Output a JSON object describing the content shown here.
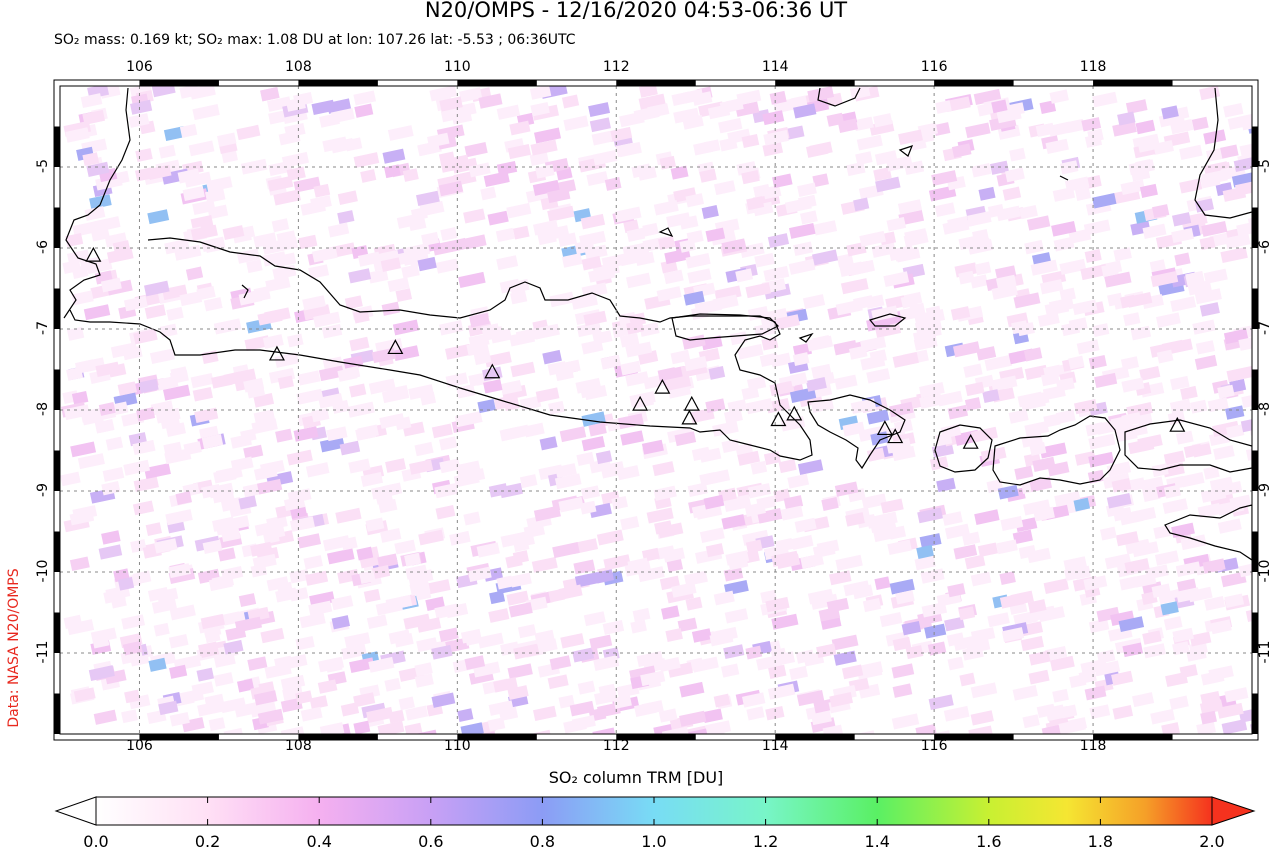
{
  "header": {
    "title": "N20/OMPS - 12/16/2020 04:53-06:36 UT",
    "subtitle": "SO₂ mass: 0.169 kt; SO₂ max: 1.08 DU at lon: 107.26 lat: -5.53 ; 06:36UTC"
  },
  "credit": "Data: NASA N20/OMPS",
  "map": {
    "lon_range": [
      105.0,
      120.0
    ],
    "lat_range": [
      -12.0,
      -4.0
    ],
    "x_ticks": [
      "106",
      "108",
      "110",
      "112",
      "114",
      "116",
      "118"
    ],
    "y_ticks": [
      "-5",
      "-6",
      "-7",
      "-8",
      "-9",
      "-10",
      "-11"
    ],
    "grid": true,
    "volcanoes": [
      {
        "lon": 105.42,
        "lat": -6.1
      },
      {
        "lon": 107.73,
        "lat": -7.32
      },
      {
        "lon": 109.22,
        "lat": -7.24
      },
      {
        "lon": 110.44,
        "lat": -7.54
      },
      {
        "lon": 112.3,
        "lat": -7.94
      },
      {
        "lon": 112.58,
        "lat": -7.73
      },
      {
        "lon": 112.95,
        "lat": -7.94
      },
      {
        "lon": 112.92,
        "lat": -8.11
      },
      {
        "lon": 114.04,
        "lat": -8.13
      },
      {
        "lon": 114.24,
        "lat": -8.06
      },
      {
        "lon": 115.38,
        "lat": -8.24
      },
      {
        "lon": 115.51,
        "lat": -8.34
      },
      {
        "lon": 116.46,
        "lat": -8.41
      },
      {
        "lon": 119.06,
        "lat": -8.2
      }
    ]
  },
  "colorbar": {
    "label": "SO₂ column TRM [DU]",
    "ticks": [
      "0.0",
      "0.2",
      "0.4",
      "0.6",
      "0.8",
      "1.0",
      "1.2",
      "1.4",
      "1.6",
      "1.8",
      "2.0"
    ],
    "range": [
      0.0,
      2.0
    ],
    "colors": [
      "#ffffff",
      "#ffd6f5",
      "#f0a0f0",
      "#c8a0f5",
      "#8c96f5",
      "#78c8f5",
      "#78f5f0",
      "#78f5a0",
      "#8cf050",
      "#c8f032",
      "#f5f032",
      "#f5c832",
      "#f58c28",
      "#f53c1e"
    ]
  }
}
